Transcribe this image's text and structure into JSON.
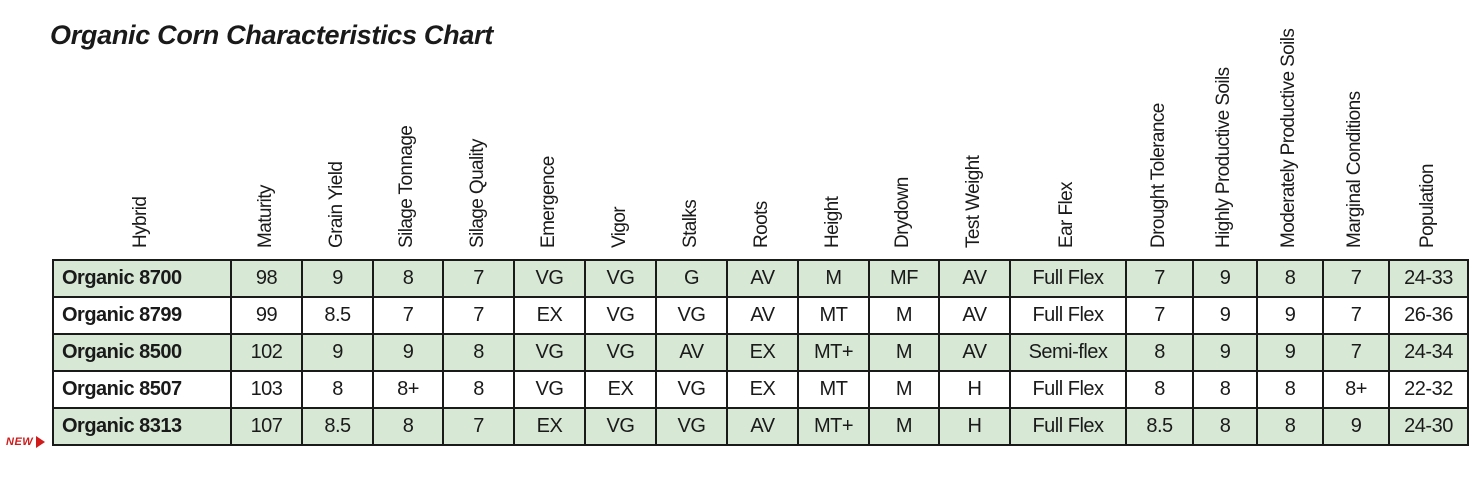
{
  "title": "Organic Corn Characteristics Chart",
  "colors": {
    "shaded_row": "#d7e8d5",
    "new_tag": "#d11a1a",
    "border": "#1a1a1a"
  },
  "new_tag": {
    "label": "NEW",
    "row_index": 4
  },
  "columns": [
    "Hybrid",
    "Maturity",
    "Grain Yield",
    "Silage Tonnage",
    "Silage Quality",
    "Emergence",
    "Vigor",
    "Stalks",
    "Roots",
    "Height",
    "Drydown",
    "Test Weight",
    "Ear Flex",
    "Drought Tolerance",
    "Highly Productive Soils",
    "Moderately Productive Soils",
    "Marginal Conditions",
    "Population"
  ],
  "rows": [
    [
      "Organic 8700",
      "98",
      "9",
      "8",
      "7",
      "VG",
      "VG",
      "G",
      "AV",
      "M",
      "MF",
      "AV",
      "Full Flex",
      "7",
      "9",
      "8",
      "7",
      "24-33"
    ],
    [
      "Organic 8799",
      "99",
      "8.5",
      "7",
      "7",
      "EX",
      "VG",
      "VG",
      "AV",
      "MT",
      "M",
      "AV",
      "Full Flex",
      "7",
      "9",
      "9",
      "7",
      "26-36"
    ],
    [
      "Organic 8500",
      "102",
      "9",
      "9",
      "8",
      "VG",
      "VG",
      "AV",
      "EX",
      "MT+",
      "M",
      "AV",
      "Semi-flex",
      "8",
      "9",
      "9",
      "7",
      "24-34"
    ],
    [
      "Organic 8507",
      "103",
      "8",
      "8+",
      "8",
      "VG",
      "EX",
      "VG",
      "EX",
      "MT",
      "M",
      "H",
      "Full Flex",
      "8",
      "8",
      "8",
      "8+",
      "22-32"
    ],
    [
      "Organic 8313",
      "107",
      "8.5",
      "8",
      "7",
      "EX",
      "VG",
      "VG",
      "AV",
      "MT+",
      "M",
      "H",
      "Full Flex",
      "8.5",
      "8",
      "8",
      "9",
      "24-30"
    ]
  ]
}
